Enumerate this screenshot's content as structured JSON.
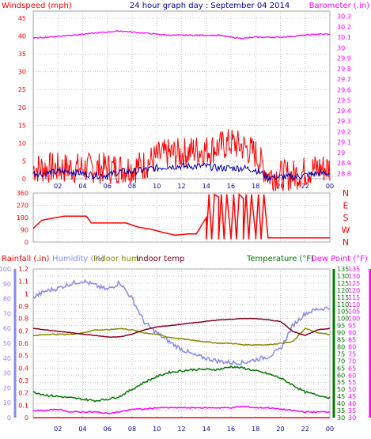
{
  "colors": {
    "windspeed": "#ff0000",
    "windspeed_avg": "#0000aa",
    "barometer": "#ff00ff",
    "wind_direction": "#ff0000",
    "rainfall": "#ff0000",
    "humidity": "#8888ee",
    "indoor_hum": "#888800",
    "indoor_temp": "#880022",
    "temperature": "#007700",
    "dew_point": "#ff00ff",
    "title": "#000099",
    "grid": "#c0c0c0"
  },
  "chart_data": [
    {
      "type": "line",
      "title": "24 hour graph day : September 04 2014",
      "left_axis_label": "Windspeed (mph)",
      "right_axis_label": "Barometer (.in)",
      "x_ticks": [
        "02",
        "04",
        "06",
        "08",
        "10",
        "12",
        "14",
        "16",
        "18",
        "20",
        "22",
        "00"
      ],
      "left_ticks": [
        "0",
        "5",
        "10",
        "15",
        "20",
        "25",
        "30",
        "35",
        "40",
        "45"
      ],
      "right_ticks": [
        "28.8",
        "28.9",
        "29",
        "29.1",
        "29.2",
        "29.3",
        "29.4",
        "29.5",
        "29.6",
        "29.7",
        "29.8",
        "29.9",
        "30",
        "30.1",
        "30.2",
        "30.3"
      ],
      "ylim_left": [
        0,
        47
      ],
      "ylim_right": [
        28.75,
        30.35
      ],
      "x_hours": [
        0,
        1,
        2,
        3,
        4,
        5,
        6,
        7,
        8,
        9,
        10,
        11,
        12,
        13,
        14,
        15,
        16,
        17,
        18,
        19,
        20,
        21,
        22,
        23,
        24
      ],
      "series": [
        {
          "name": "Windspeed",
          "axis": "left",
          "values": [
            3,
            3,
            3,
            3,
            3,
            3,
            3,
            3,
            3,
            4,
            6,
            7,
            7,
            8,
            8,
            9,
            10,
            9,
            7,
            1,
            1,
            1,
            2,
            3,
            3
          ]
        },
        {
          "name": "Windspeed avg",
          "axis": "left",
          "values": [
            1.5,
            1.5,
            2,
            2,
            1.5,
            1,
            1,
            2,
            2,
            2.5,
            3,
            3.5,
            3.5,
            3.5,
            3.5,
            3,
            3,
            3,
            2.5,
            0.5,
            0.5,
            0.5,
            1,
            1.5,
            1.5
          ]
        },
        {
          "name": "Barometer",
          "axis": "right",
          "values": [
            30.09,
            30.1,
            30.11,
            30.12,
            30.13,
            30.14,
            30.15,
            30.16,
            30.15,
            30.14,
            30.13,
            30.12,
            30.12,
            30.12,
            30.12,
            30.12,
            30.1,
            30.09,
            30.1,
            30.1,
            30.1,
            30.11,
            30.12,
            30.13,
            30.13
          ]
        }
      ]
    },
    {
      "type": "line",
      "left_ticks": [
        "0",
        "90",
        "180",
        "270",
        "360"
      ],
      "right_labels": [
        "N",
        "W",
        "S",
        "E",
        "N"
      ],
      "ylim": [
        0,
        360
      ],
      "x_hours": [
        0,
        0.7,
        2.5,
        4.3,
        4.7,
        7.5,
        8.5,
        9.5,
        10.5,
        11.5,
        12.5,
        13.2,
        14,
        15,
        16,
        17,
        18,
        19,
        22,
        24
      ],
      "values": [
        100,
        160,
        190,
        190,
        140,
        140,
        110,
        95,
        70,
        50,
        60,
        60,
        180,
        330,
        30,
        320,
        40,
        30,
        30,
        30
      ]
    },
    {
      "type": "line",
      "legend": [
        {
          "name": "Rainfall (.in)",
          "color": "#ff0000"
        },
        {
          "name": "Humidity (%)",
          "color": "#8888ee"
        },
        {
          "name": "Indoor hum",
          "color": "#888800"
        },
        {
          "name": "Indoor temp",
          "color": "#880022"
        },
        {
          "name": "Temperature (°F)",
          "color": "#007700"
        },
        {
          "name": "Dew Point (°F)",
          "color": "#ff00ff"
        }
      ],
      "x_ticks": [
        "02",
        "04",
        "06",
        "08",
        "10",
        "12",
        "14",
        "16",
        "18",
        "20",
        "22",
        "00"
      ],
      "left_ticks_humidity": [
        "0",
        "10",
        "20",
        "30",
        "40",
        "50",
        "60",
        "70",
        "80",
        "90",
        "100"
      ],
      "left_ticks_rain": [
        "0",
        "0.1",
        "0.2",
        "0.3",
        "0.4",
        "0.5",
        "0.6",
        "0.7",
        "0.8",
        "0.9",
        "1",
        "1.1",
        "1.2"
      ],
      "right_ticks_temperature": [
        "30",
        "35",
        "40",
        "45",
        "50",
        "55",
        "60",
        "65",
        "70",
        "75",
        "80",
        "85",
        "90",
        "95",
        "100",
        "105",
        "110",
        "115",
        "120",
        "125",
        "130",
        "135"
      ],
      "ylim_humidity": [
        0,
        100
      ],
      "ylim_rain": [
        0,
        1.2
      ],
      "ylim_temperature": [
        30,
        135
      ],
      "x_hours": [
        0,
        1,
        2,
        3,
        4,
        5,
        6,
        7,
        8,
        9,
        10,
        11,
        12,
        13,
        14,
        15,
        16,
        17,
        18,
        19,
        20,
        21,
        22,
        23,
        24
      ],
      "series": [
        {
          "name": "Humidity",
          "axis": "humidity",
          "values": [
            81,
            85,
            87,
            90,
            92,
            89,
            86,
            91,
            80,
            64,
            57,
            51,
            46,
            42,
            40,
            38,
            37,
            37,
            39,
            41,
            46,
            62,
            70,
            73,
            74
          ]
        },
        {
          "name": "Indoor hum",
          "axis": "humidity",
          "values": [
            55,
            56,
            56,
            56,
            57,
            59,
            59,
            60,
            59,
            57,
            56,
            54,
            53,
            52,
            51,
            50,
            50,
            49,
            49,
            49,
            50,
            51,
            60,
            57,
            56
          ]
        },
        {
          "name": "Indoor temp",
          "axis": "temperature",
          "values": [
            93,
            92,
            91,
            90,
            89,
            88,
            87,
            87,
            89,
            92,
            94,
            95,
            96,
            97,
            98,
            99,
            99.5,
            100,
            100,
            99,
            98,
            91,
            88,
            92,
            93
          ]
        },
        {
          "name": "Temperature",
          "axis": "temperature",
          "values": [
            48,
            46,
            45,
            44,
            43,
            42,
            43,
            45,
            50,
            55,
            59,
            62,
            63,
            64,
            64,
            64,
            66,
            65,
            63,
            61,
            58,
            53,
            48,
            46,
            44
          ]
        },
        {
          "name": "Dew Point",
          "axis": "temperature",
          "values": [
            35,
            35,
            36,
            34,
            34,
            34,
            33,
            34,
            36,
            36,
            37,
            37,
            37,
            37,
            37,
            37,
            37,
            38,
            37,
            37,
            36,
            35,
            34,
            34,
            34
          ]
        },
        {
          "name": "Rainfall",
          "axis": "rain",
          "values": [
            0,
            0,
            0,
            0,
            0,
            0,
            0,
            0,
            0,
            0,
            0,
            0,
            0,
            0,
            0,
            0,
            0,
            0,
            0,
            0,
            0,
            0,
            0,
            0,
            0
          ]
        }
      ]
    }
  ]
}
